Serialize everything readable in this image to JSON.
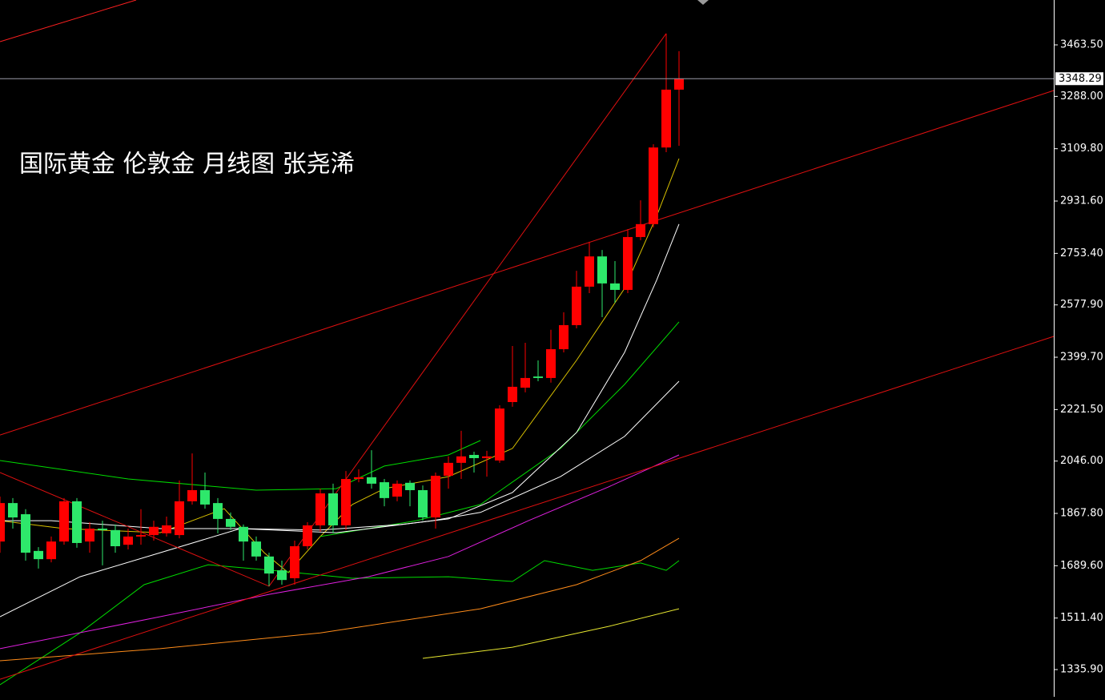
{
  "chart_data": {
    "type": "candlestick",
    "title": "国际黄金 伦敦金 月线图 张尧浠",
    "categories": [
      null,
      null,
      null,
      null,
      null,
      null,
      null,
      null,
      null,
      null,
      null,
      null,
      null,
      null,
      null,
      null,
      null,
      null,
      null,
      null,
      null,
      null,
      null,
      null,
      null,
      null,
      null,
      null,
      null,
      null,
      null,
      null,
      null,
      null,
      null,
      null,
      null,
      null,
      null,
      null,
      null,
      null,
      null,
      null,
      null,
      null,
      null,
      null,
      null,
      null,
      null,
      null,
      null,
      null
    ],
    "open": [
      1772,
      1903,
      1865,
      1740,
      1712,
      1772,
      1909,
      1772,
      1816,
      1811,
      1761,
      1789,
      1794,
      1800,
      1794,
      1909,
      1947,
      1903,
      1849,
      1822,
      1772,
      1721,
      1674,
      1647,
      1756,
      1827,
      1936,
      1827,
      1985,
      1991,
      1974,
      1925,
      1972,
      1947,
      1854,
      1996,
      2040,
      2067,
      2056,
      2048,
      2247,
      2296,
      2334,
      2329,
      2427,
      2509,
      2640,
      2743,
      2651,
      2629,
      2809,
      2853,
      3114,
      3311
    ],
    "high": [
      1925,
      1920,
      1882,
      1753,
      1789,
      1920,
      1920,
      1838,
      1843,
      1830,
      1816,
      1882,
      1843,
      1857,
      1980,
      2072,
      2007,
      1920,
      1871,
      1830,
      1789,
      1734,
      1707,
      1775,
      1838,
      1952,
      1969,
      2012,
      2018,
      2083,
      1985,
      1980,
      1980,
      1963,
      2007,
      2062,
      2149,
      2078,
      2081,
      2236,
      2438,
      2449,
      2389,
      2493,
      2553,
      2694,
      2793,
      2765,
      2727,
      2836,
      2934,
      3125,
      3502,
      3442
    ],
    "low": [
      1734,
      1816,
      1707,
      1680,
      1701,
      1761,
      1751,
      1734,
      1691,
      1734,
      1745,
      1761,
      1775,
      1789,
      1783,
      1898,
      1884,
      1800,
      1811,
      1707,
      1707,
      1620,
      1625,
      1625,
      1745,
      1805,
      1800,
      1811,
      1974,
      1952,
      1892,
      1909,
      1892,
      1843,
      1816,
      1952,
      1985,
      2007,
      1993,
      2040,
      2231,
      2280,
      2318,
      2313,
      2416,
      2498,
      2618,
      2536,
      2585,
      2618,
      2798,
      2842,
      3098,
      3120
    ],
    "close": [
      1903,
      1854,
      1734,
      1712,
      1772,
      1909,
      1767,
      1816,
      1811,
      1756,
      1789,
      1794,
      1822,
      1827,
      1909,
      1947,
      1898,
      1849,
      1822,
      1772,
      1721,
      1663,
      1641,
      1756,
      1827,
      1936,
      1827,
      1985,
      1991,
      1969,
      1920,
      1969,
      1947,
      1854,
      1996,
      2040,
      2062,
      2056,
      2062,
      2225,
      2299,
      2329,
      2329,
      2427,
      2509,
      2640,
      2743,
      2651,
      2629,
      2809,
      2853,
      3114,
      3311,
      3348.29
    ],
    "up_color": "#ff0000",
    "down_color": "#2ee86b",
    "xlim": [
      0,
      82.25
    ],
    "ylim": [
      1243.2,
      3616.3
    ],
    "yticks": [
      {
        "value": 3463.5,
        "label": "3463.50"
      },
      {
        "value": 3288,
        "label": "3288.00"
      },
      {
        "value": 3109.8,
        "label": "3109.80"
      },
      {
        "value": 2931.6,
        "label": "2931.60"
      },
      {
        "value": 2753.4,
        "label": "2753.40"
      },
      {
        "value": 2577.9,
        "label": "2577.90"
      },
      {
        "value": 2399.7,
        "label": "2399.70"
      },
      {
        "value": 2221.5,
        "label": "2221.50"
      },
      {
        "value": 2046,
        "label": "2046.00"
      },
      {
        "value": 1867.8,
        "label": "1867.80"
      },
      {
        "value": 1689.6,
        "label": "1689.60"
      },
      {
        "value": 1511.4,
        "label": "1511.40"
      },
      {
        "value": 1335.9,
        "label": "1335.90"
      }
    ],
    "last_price": {
      "value": 3348.29,
      "label": "3348.29"
    },
    "overlays": [
      {
        "color": "#d8c000",
        "x": [
          0,
          5,
          12.5,
          17.5,
          20.625,
          22.5,
          25,
          27.5,
          30,
          35,
          40,
          45,
          48.75,
          51.25,
          53
        ],
        "values": [
          1843,
          1816,
          1802,
          1884,
          1734,
          1666,
          1789,
          1898,
          1952,
          1993,
          2089,
          2389,
          2634,
          2880,
          3076
        ]
      },
      {
        "color": "#00dd00",
        "x": [
          0,
          10,
          20,
          26.25,
          30,
          35,
          37.5
        ],
        "values": [
          2048,
          1985,
          1947,
          1952,
          2029,
          2067,
          2116
        ]
      },
      {
        "color": "#00dd00",
        "x": [
          25,
          32.5,
          37.5,
          43.75,
          48.75,
          53
        ],
        "values": [
          1789,
          1843,
          1898,
          2089,
          2307,
          2520
        ]
      },
      {
        "color": "#00dd00",
        "x": [
          0,
          6.25,
          11.25,
          16.25,
          21.25,
          27.5,
          35,
          40,
          42.5,
          46.25,
          50,
          52,
          53
        ],
        "values": [
          1284,
          1461,
          1625,
          1693,
          1674,
          1647,
          1652,
          1636,
          1707,
          1674,
          1699,
          1674,
          1707
        ]
      },
      {
        "color": "#ffffff",
        "x": [
          0,
          6.25,
          12.5,
          18.75,
          25,
          31.25,
          35,
          40,
          45,
          48.75,
          51.25,
          53
        ],
        "values": [
          1516,
          1652,
          1734,
          1816,
          1811,
          1830,
          1849,
          1939,
          2143,
          2416,
          2662,
          2853
        ]
      },
      {
        "color": "#ffffff",
        "x": [
          0,
          4,
          12.5,
          18.75,
          26.25,
          33.75,
          37.5,
          43.75,
          48.75,
          53
        ],
        "values": [
          1843,
          1843,
          1816,
          1816,
          1802,
          1843,
          1871,
          1993,
          2130,
          2318
        ]
      },
      {
        "color": "#e020e0",
        "x": [
          0,
          12.5,
          21,
          28.75,
          35,
          41.25,
          47.5,
          53
        ],
        "values": [
          1407,
          1516,
          1592,
          1652,
          1721,
          1843,
          1958,
          2067
        ]
      },
      {
        "color": "#ff8c1a",
        "x": [
          0,
          12.5,
          25,
          37.5,
          45,
          50,
          53
        ],
        "values": [
          1366,
          1407,
          1461,
          1543,
          1625,
          1707,
          1783
        ]
      },
      {
        "color": "#e8e830",
        "x": [
          33,
          40,
          47.5,
          53
        ],
        "values": [
          1374,
          1412,
          1483,
          1543
        ]
      },
      {
        "color": "#ff2020",
        "x": [
          0,
          10.625
        ],
        "values": [
          3474.5,
          3616.3
        ]
      },
      {
        "color": "#e01010",
        "x": [
          0,
          82.25
        ],
        "values": [
          2135,
          3308
        ]
      },
      {
        "color": "#e01010",
        "x": [
          0,
          82.25
        ],
        "values": [
          1303,
          2470.7
        ]
      },
      {
        "color": "#e01010",
        "x": [
          0,
          21,
          52
        ],
        "values": [
          2007,
          1620,
          3502
        ]
      }
    ]
  }
}
